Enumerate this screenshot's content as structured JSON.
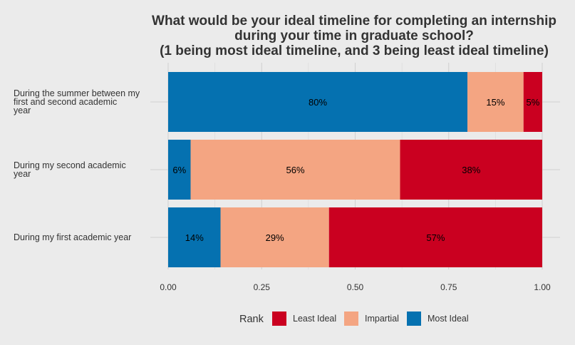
{
  "chart_data": {
    "type": "bar",
    "orientation": "horizontal",
    "stacked": true,
    "title": [
      "What would be your ideal timeline for completing an internship",
      "during your time in graduate school?",
      "(1 being most ideal timeline, and 3 being least ideal timeline)"
    ],
    "categories": [
      [
        "During the summer between my",
        "first and second academic",
        "year"
      ],
      [
        "During my second academic",
        "year"
      ],
      [
        "During my first academic year"
      ]
    ],
    "series": [
      {
        "name": "Most Ideal",
        "color": "#0571b0",
        "values": [
          0.8,
          0.06,
          0.14
        ],
        "labels": [
          "80%",
          "6%",
          "14%"
        ]
      },
      {
        "name": "Impartial",
        "color": "#f4a582",
        "values": [
          0.15,
          0.56,
          0.29
        ],
        "labels": [
          "15%",
          "56%",
          "29%"
        ]
      },
      {
        "name": "Least Ideal",
        "color": "#ca0020",
        "values": [
          0.05,
          0.38,
          0.57
        ],
        "labels": [
          "5%",
          "38%",
          "57%"
        ]
      }
    ],
    "xlim": [
      0,
      1
    ],
    "xticks": [
      0,
      0.25,
      0.5,
      0.75,
      1
    ],
    "xtick_labels": [
      "0.00",
      "0.25",
      "0.50",
      "0.75",
      "1.00"
    ],
    "grid": true,
    "legend": {
      "title": "Rank",
      "position": "bottom",
      "order": [
        "Least Ideal",
        "Impartial",
        "Most Ideal"
      ]
    }
  }
}
